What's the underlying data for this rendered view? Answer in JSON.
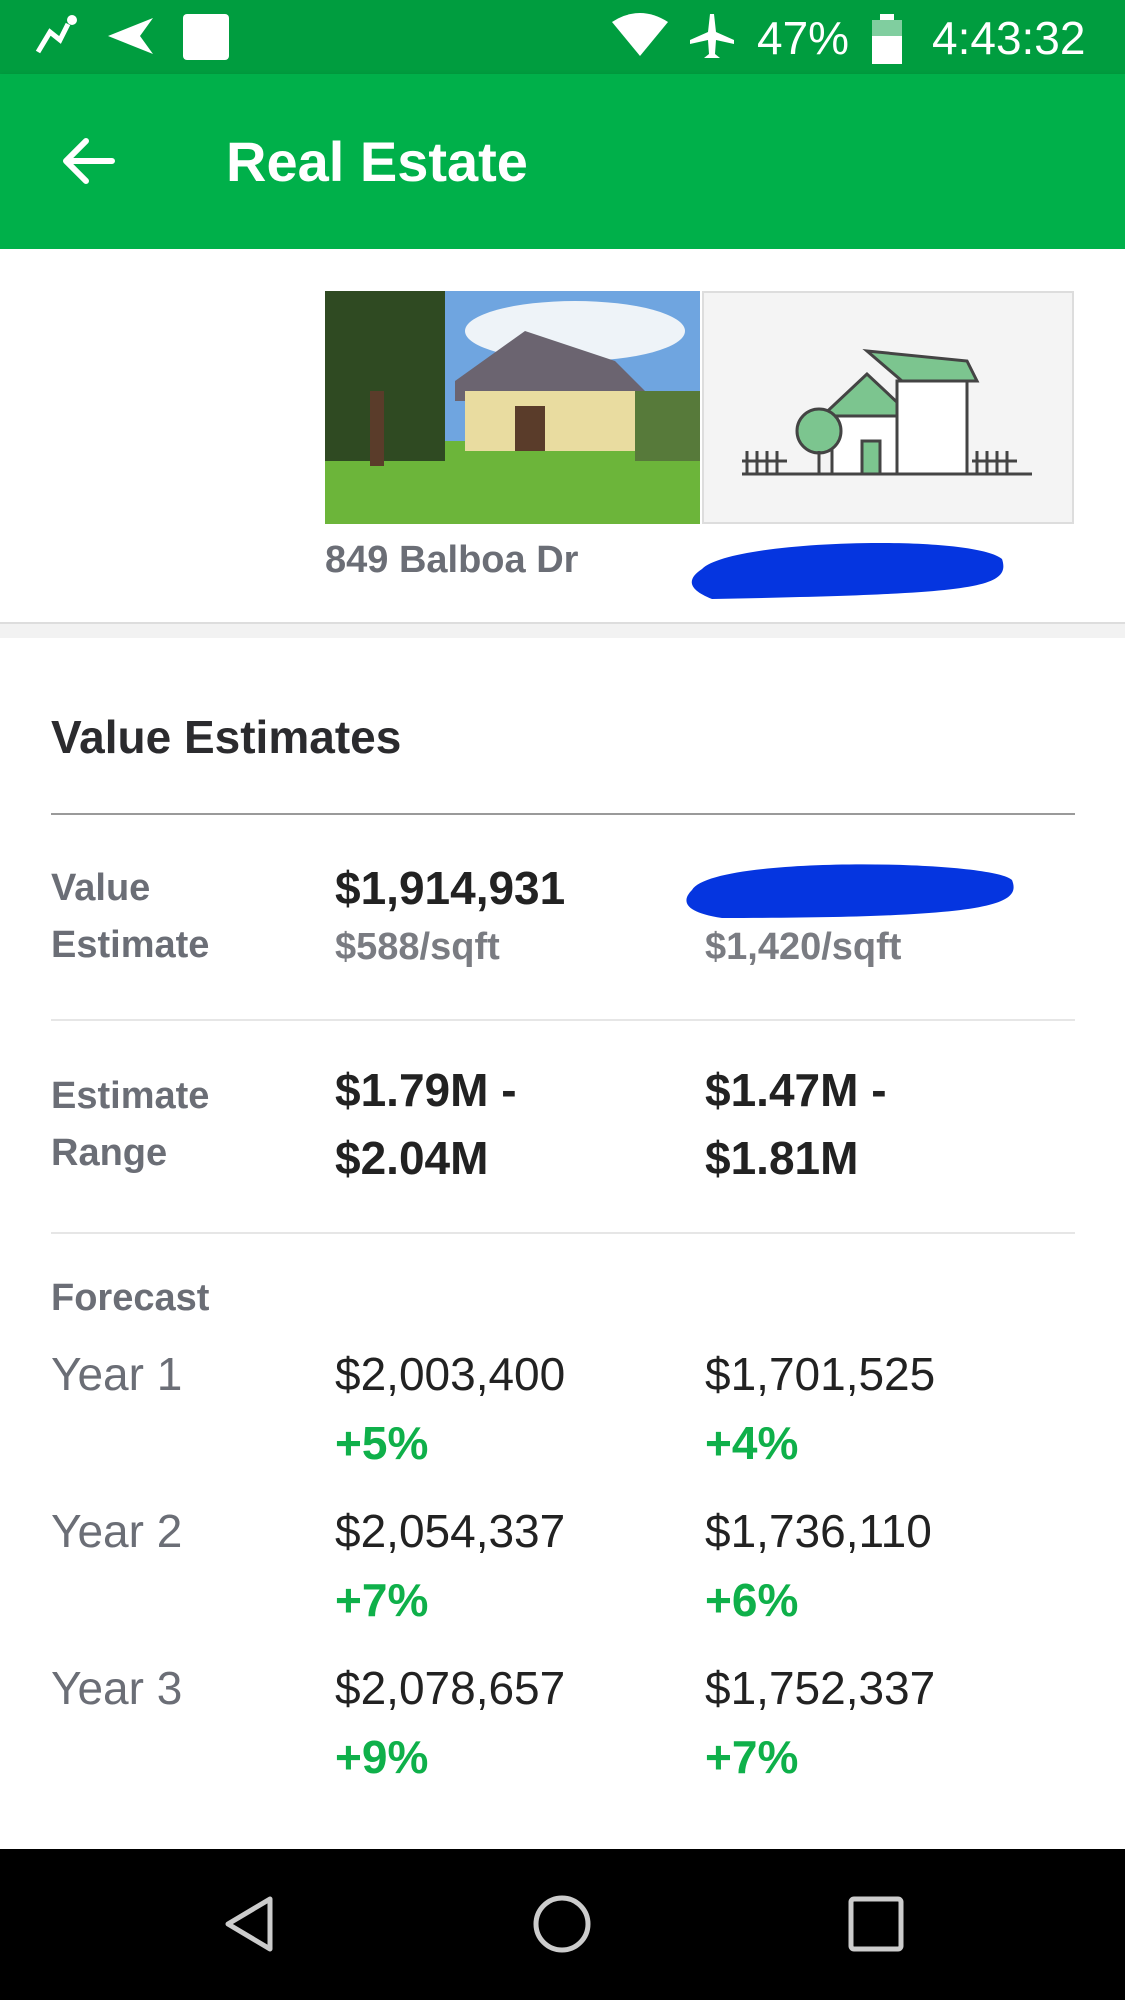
{
  "status_bar": {
    "battery": "47%",
    "time": "4:43:32"
  },
  "header": {
    "title": "Real Estate"
  },
  "property": {
    "address": "849 Balboa Dr"
  },
  "value_estimates": {
    "title": "Value Estimates",
    "value_estimate": {
      "label": "Value Estimate",
      "primary": {
        "value": "$1,914,931",
        "per_sqft": "$588/sqft"
      },
      "comparison": {
        "per_sqft": "$1,420/sqft"
      }
    },
    "estimate_range": {
      "label": "Estimate Range",
      "primary": "$1.79M - $2.04M",
      "comparison": "$1.47M - $1.81M"
    },
    "forecast": {
      "label": "Forecast",
      "years": [
        {
          "label": "Year 1",
          "primary": {
            "value": "$2,003,400",
            "change": "+5%"
          },
          "comparison": {
            "value": "$1,701,525",
            "change": "+4%"
          }
        },
        {
          "label": "Year 2",
          "primary": {
            "value": "$2,054,337",
            "change": "+7%"
          },
          "comparison": {
            "value": "$1,736,110",
            "change": "+6%"
          }
        },
        {
          "label": "Year 3",
          "primary": {
            "value": "$2,078,657",
            "change": "+9%"
          },
          "comparison": {
            "value": "$1,752,337",
            "change": "+7%"
          }
        }
      ]
    }
  }
}
